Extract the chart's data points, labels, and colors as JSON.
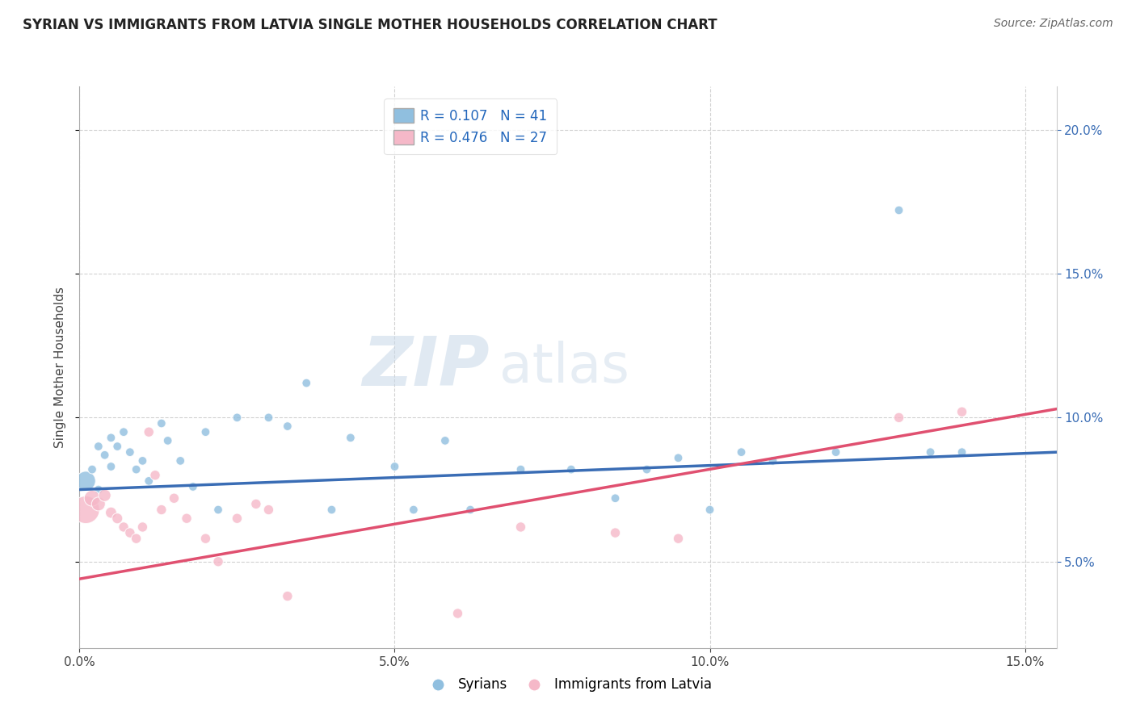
{
  "title": "SYRIAN VS IMMIGRANTS FROM LATVIA SINGLE MOTHER HOUSEHOLDS CORRELATION CHART",
  "source": "Source: ZipAtlas.com",
  "ylabel": "Single Mother Households",
  "xlim": [
    0.0,
    0.155
  ],
  "ylim": [
    0.02,
    0.215
  ],
  "blue_color": "#90bfdf",
  "pink_color": "#f5b8c8",
  "blue_line_color": "#3a6db5",
  "pink_line_color": "#e05070",
  "watermark_zip": "ZIP",
  "watermark_atlas": "atlas",
  "blue_R": 0.107,
  "blue_N": 41,
  "pink_R": 0.476,
  "pink_N": 27,
  "legend_label1_short": "Syrians",
  "legend_label2_short": "Immigrants from Latvia",
  "blue_line_x": [
    0.0,
    0.155
  ],
  "blue_line_y": [
    0.075,
    0.088
  ],
  "pink_line_x": [
    0.0,
    0.155
  ],
  "pink_line_y": [
    0.044,
    0.103
  ],
  "syrians_x": [
    0.001,
    0.002,
    0.003,
    0.003,
    0.004,
    0.005,
    0.005,
    0.006,
    0.007,
    0.008,
    0.009,
    0.01,
    0.011,
    0.013,
    0.014,
    0.016,
    0.018,
    0.02,
    0.022,
    0.025,
    0.03,
    0.033,
    0.036,
    0.04,
    0.043,
    0.05,
    0.053,
    0.058,
    0.062,
    0.07,
    0.078,
    0.085,
    0.09,
    0.095,
    0.1,
    0.105,
    0.11,
    0.12,
    0.13,
    0.135,
    0.14
  ],
  "syrians_y": [
    0.078,
    0.082,
    0.09,
    0.075,
    0.087,
    0.093,
    0.083,
    0.09,
    0.095,
    0.088,
    0.082,
    0.085,
    0.078,
    0.098,
    0.092,
    0.085,
    0.076,
    0.095,
    0.068,
    0.1,
    0.1,
    0.097,
    0.112,
    0.068,
    0.093,
    0.083,
    0.068,
    0.092,
    0.068,
    0.082,
    0.082,
    0.072,
    0.082,
    0.086,
    0.068,
    0.088,
    0.085,
    0.088,
    0.172,
    0.088,
    0.088
  ],
  "syrians_size": [
    300,
    60,
    60,
    60,
    60,
    60,
    60,
    60,
    60,
    60,
    60,
    60,
    60,
    60,
    60,
    60,
    60,
    60,
    60,
    60,
    60,
    60,
    60,
    60,
    60,
    60,
    60,
    60,
    60,
    60,
    60,
    60,
    60,
    60,
    60,
    60,
    60,
    60,
    60,
    60,
    60
  ],
  "latvia_x": [
    0.001,
    0.002,
    0.003,
    0.004,
    0.005,
    0.006,
    0.007,
    0.008,
    0.009,
    0.01,
    0.011,
    0.012,
    0.013,
    0.015,
    0.017,
    0.02,
    0.022,
    0.025,
    0.028,
    0.03,
    0.033,
    0.06,
    0.07,
    0.085,
    0.095,
    0.13,
    0.14
  ],
  "latvia_y": [
    0.068,
    0.072,
    0.07,
    0.073,
    0.067,
    0.065,
    0.062,
    0.06,
    0.058,
    0.062,
    0.095,
    0.08,
    0.068,
    0.072,
    0.065,
    0.058,
    0.05,
    0.065,
    0.07,
    0.068,
    0.038,
    0.032,
    0.062,
    0.06,
    0.058,
    0.1,
    0.102
  ],
  "latvia_size": [
    600,
    200,
    150,
    120,
    100,
    90,
    80,
    80,
    80,
    80,
    80,
    80,
    80,
    80,
    80,
    80,
    80,
    80,
    80,
    80,
    80,
    80,
    80,
    80,
    80,
    80,
    80
  ]
}
